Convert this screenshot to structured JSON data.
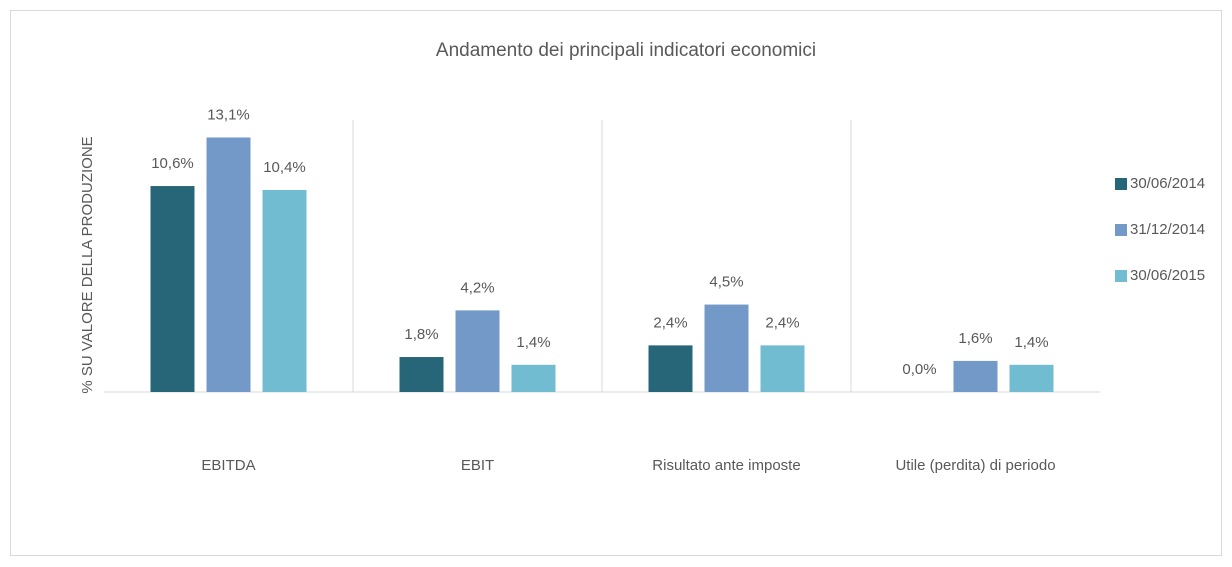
{
  "chart_data": {
    "type": "bar",
    "title": "Andamento dei principali indicatori economici",
    "y_label": "% SU VALORE DELLA PRODUZIONE",
    "categories": [
      "EBITDA",
      "EBIT",
      "Risultato ante imposte",
      "Utile (perdita) di periodo"
    ],
    "series": [
      {
        "name": "30/06/2014",
        "color": "#276678",
        "values": [
          10.6,
          1.8,
          2.4,
          0.0
        ],
        "value_labels": [
          "10,6%",
          "1,8%",
          "2,4%",
          "0,0%"
        ]
      },
      {
        "name": "31/12/2014",
        "color": "#7399c9",
        "values": [
          13.1,
          4.2,
          4.5,
          1.6
        ],
        "value_labels": [
          "13,1%",
          "4,2%",
          "4,5%",
          "1,6%"
        ]
      },
      {
        "name": "30/06/2015",
        "color": "#71bcd1",
        "values": [
          10.4,
          1.4,
          2.4,
          1.4
        ],
        "value_labels": [
          "10,4%",
          "1,4%",
          "2,4%",
          "1,4%"
        ]
      }
    ],
    "ylim": [
      0,
      14
    ],
    "legend": "right"
  }
}
